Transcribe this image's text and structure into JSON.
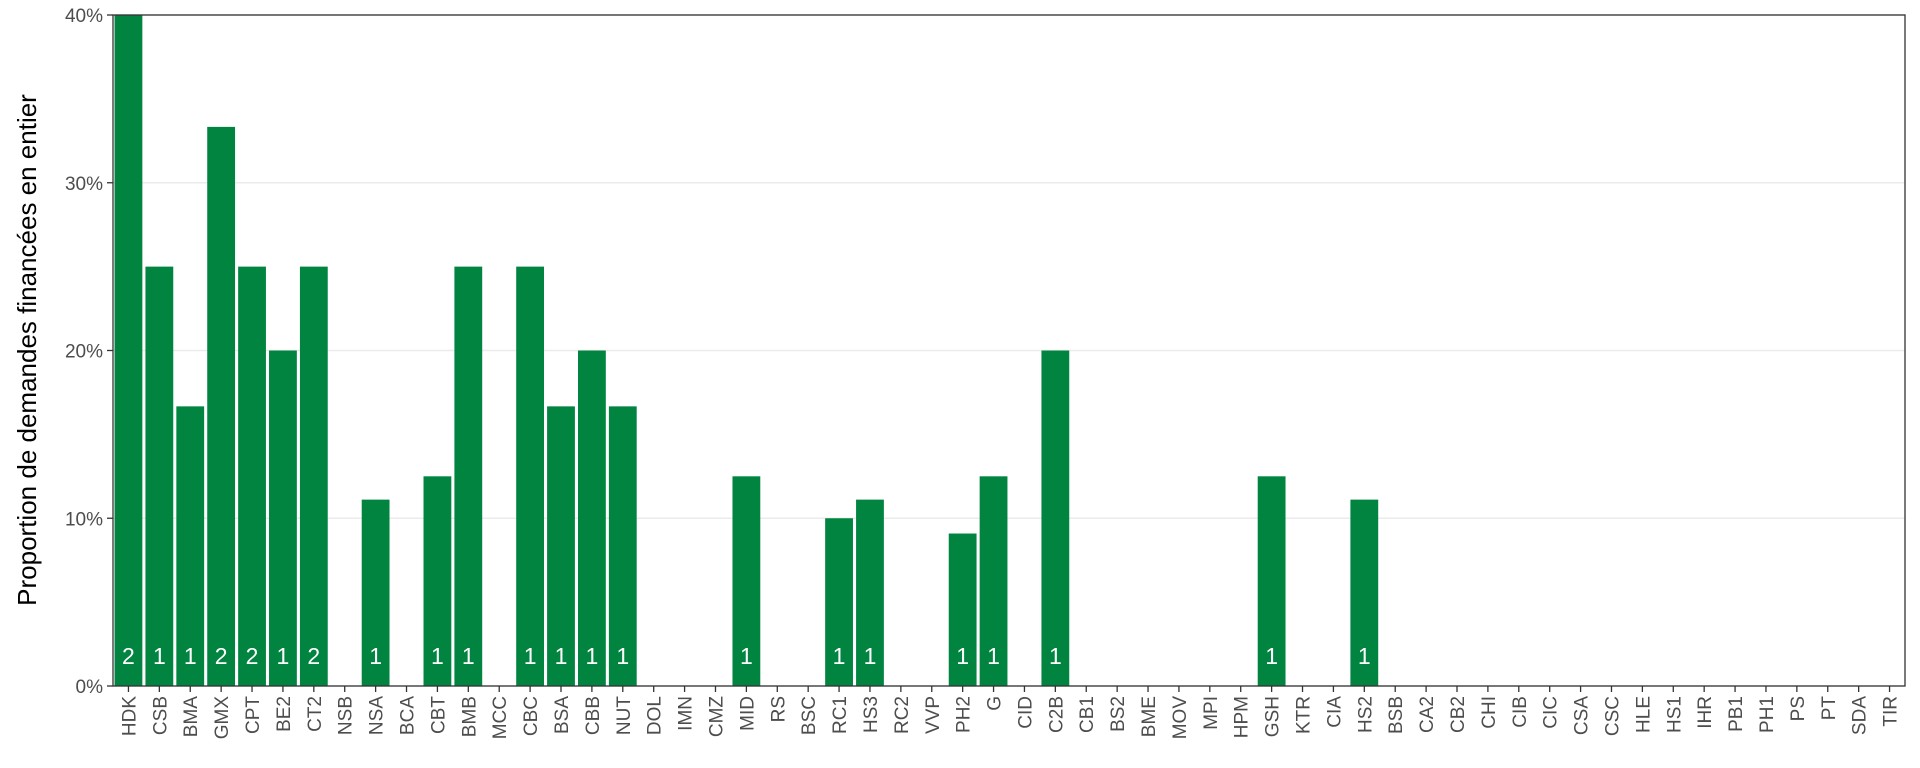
{
  "chart_data": {
    "type": "bar",
    "title": "",
    "xlabel": "",
    "ylabel": "Proportion de demandes financées en entier",
    "ylim": [
      0,
      40
    ],
    "yticks": [
      0,
      10,
      20,
      30,
      40
    ],
    "ytick_labels": [
      "0%",
      "10%",
      "20%",
      "30%",
      "40%"
    ],
    "grid": true,
    "legend": "none",
    "bar_color": "#00843F",
    "categories": [
      "HDK",
      "CSB",
      "BMA",
      "GMX",
      "CPT",
      "BE2",
      "CT2",
      "NSB",
      "NSA",
      "BCA",
      "CBT",
      "BMB",
      "MCC",
      "CBC",
      "BSA",
      "CBB",
      "NUT",
      "DOL",
      "IMN",
      "CMZ",
      "MID",
      "RS",
      "BSC",
      "RC1",
      "HS3",
      "RC2",
      "VVP",
      "PH2",
      "G",
      "CID",
      "C2B",
      "CB1",
      "BS2",
      "BME",
      "MOV",
      "MPI",
      "HPM",
      "GSH",
      "KTR",
      "CIA",
      "HS2",
      "BSB",
      "CA2",
      "CB2",
      "CHI",
      "CIB",
      "CIC",
      "CSA",
      "CSC",
      "HLE",
      "HS1",
      "IHR",
      "PB1",
      "PH1",
      "PS",
      "PT",
      "SDA",
      "TIR"
    ],
    "values": [
      40,
      25,
      16.67,
      33.33,
      25,
      20,
      25,
      0,
      11.11,
      0,
      12.5,
      25,
      0,
      25,
      16.67,
      20,
      16.67,
      0,
      0,
      0,
      12.5,
      0,
      0,
      10,
      11.11,
      0,
      0,
      9.09,
      12.5,
      0,
      20,
      0,
      0,
      0,
      0,
      0,
      0,
      12.5,
      0,
      0,
      11.11,
      0,
      0,
      0,
      0,
      0,
      0,
      0,
      0,
      0,
      0,
      0,
      0,
      0,
      0,
      0,
      0,
      0
    ],
    "counts": [
      "2",
      "1",
      "1",
      "2",
      "2",
      "1",
      "2",
      "",
      "1",
      "",
      "1",
      "1",
      "",
      "1",
      "1",
      "1",
      "1",
      "",
      "",
      "",
      "1",
      "",
      "",
      "1",
      "1",
      "",
      "",
      "1",
      "1",
      "",
      "1",
      "",
      "",
      "",
      "",
      "",
      "",
      "1",
      "",
      "",
      "1",
      "",
      "",
      "",
      "",
      "",
      "",
      "",
      "",
      "",
      "",
      "",
      "",
      "",
      "",
      "",
      "",
      ""
    ]
  }
}
